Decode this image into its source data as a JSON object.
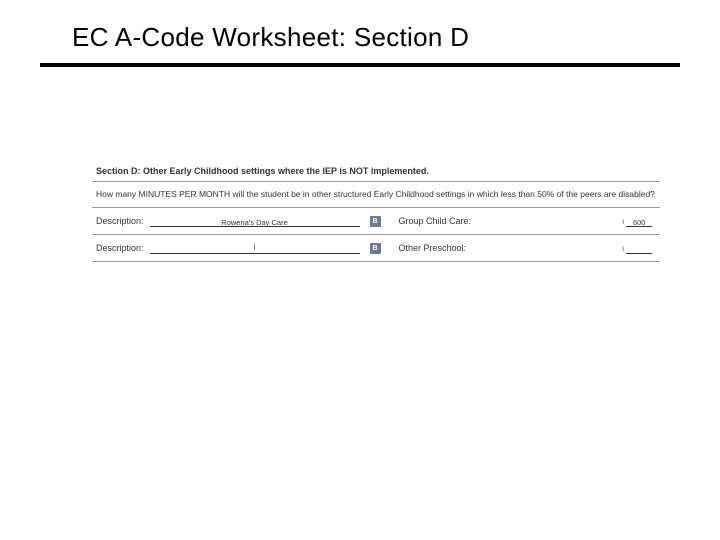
{
  "title": "EC A-Code Worksheet:  Section D",
  "section": {
    "header": "Section D: Other Early Childhood settings where the IEP is NOT implemented.",
    "question": "How many MINUTES PER MONTH will the student be in other structured Early Childhood settings in which less than 50% of the peers are disabled?",
    "rows": [
      {
        "descLabel": "Description:",
        "descText": "Rowena's Day Care",
        "badge": "B",
        "category": "Group Child Care:",
        "value": "600"
      },
      {
        "descLabel": "Description:",
        "descText": "|",
        "badge": "B",
        "category": "Other Preschool:",
        "value": ""
      }
    ]
  },
  "colors": {
    "background": "#ffffff",
    "text": "#000000",
    "border": "#999999",
    "badge": "#6b7a8f"
  }
}
